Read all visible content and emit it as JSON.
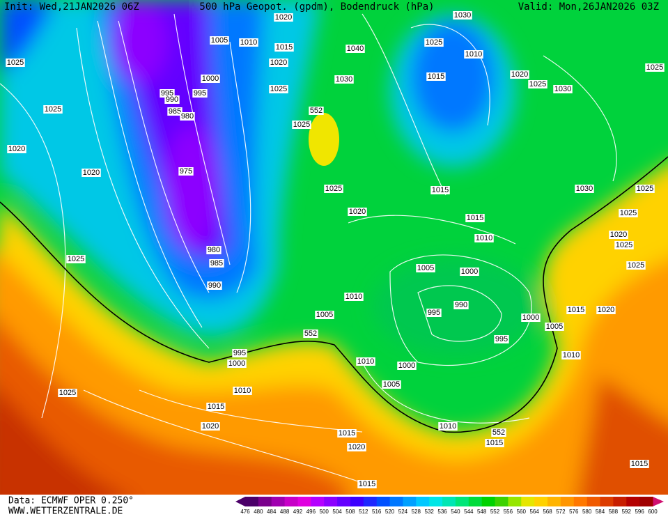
{
  "header": {
    "init": "Init: Wed,21JAN2026 06Z",
    "title": "500 hPa Geopot. (gpdm), Bodendruck (hPa)",
    "valid": "Valid: Mon,26JAN2026 03Z"
  },
  "map": {
    "isobar_labels": [
      1020,
      1030,
      1005,
      1010,
      1015,
      1040,
      1025,
      1010,
      1025,
      1020,
      1000,
      1030,
      1015,
      1020,
      1025,
      1030,
      1025,
      995,
      990,
      995,
      1025,
      1025,
      985,
      980,
      552,
      1025,
      1020,
      1020,
      975,
      1025,
      1015,
      1030,
      1025,
      1020,
      1015,
      1025,
      1020,
      1010,
      1025,
      980,
      1025,
      985,
      1005,
      1000,
      1025,
      990,
      1010,
      995,
      990,
      1015,
      1020,
      1000,
      1005,
      1005,
      552,
      995,
      995,
      1000,
      1010,
      1000,
      1010,
      1005,
      1010,
      1025,
      1015,
      1020,
      1010,
      552,
      1015,
      1015,
      1020,
      1015,
      1015
    ]
  },
  "footer": {
    "source": "Data: ECMWF OPER 0.250°",
    "website": "WWW.WETTERZENTRALE.DE"
  },
  "colorbar": {
    "labels": [
      476,
      480,
      484,
      488,
      492,
      496,
      500,
      504,
      508,
      512,
      516,
      520,
      524,
      528,
      532,
      536,
      540,
      544,
      548,
      552,
      556,
      560,
      564,
      568,
      572,
      576,
      580,
      584,
      588,
      592,
      596,
      600
    ],
    "colors": [
      "#4b0069",
      "#7a008c",
      "#a000b0",
      "#c800c8",
      "#e000e0",
      "#b400ff",
      "#8c00ff",
      "#6400ff",
      "#3c00ff",
      "#1e28ff",
      "#0050ff",
      "#0078ff",
      "#00a0ff",
      "#00c8ff",
      "#00e6e6",
      "#00e6b4",
      "#00e678",
      "#00dc3c",
      "#00d200",
      "#3cd200",
      "#96e600",
      "#e6e600",
      "#ffd200",
      "#ffb400",
      "#ff9600",
      "#ff7800",
      "#f05a00",
      "#dc3c00",
      "#c81e00",
      "#b40000",
      "#a00000"
    ]
  }
}
